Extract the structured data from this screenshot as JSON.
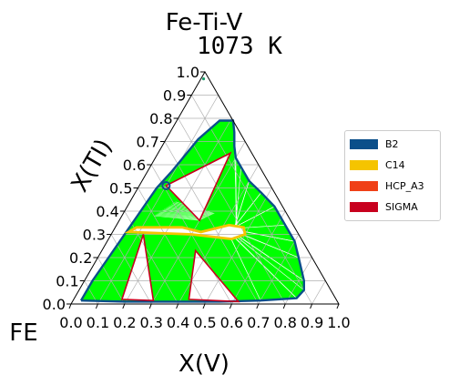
{
  "chart_data": {
    "type": "ternary-phase-diagram",
    "title": "Fe-Ti-V",
    "subtitle": "1073 K",
    "xlabel": "X(V)",
    "ylabel": "X(TI)",
    "corner_label": "FE",
    "x_ticks": [
      "0.0",
      "0.1",
      "0.2",
      "0.3",
      "0.4",
      "0.5",
      "0.6",
      "0.7",
      "0.8",
      "0.9",
      "1.0"
    ],
    "y_ticks": [
      "0.0",
      "0.1",
      "0.2",
      "0.3",
      "0.4",
      "0.5",
      "0.6",
      "0.7",
      "0.8",
      "0.9",
      "1.0"
    ],
    "axis_range": [
      0,
      1
    ],
    "grid": true,
    "legend_position": "right",
    "legend": [
      {
        "name": "B2",
        "color": "#0b4f8a"
      },
      {
        "name": "C14",
        "color": "#f5c400"
      },
      {
        "name": "HCP_A3",
        "color": "#f04017"
      },
      {
        "name": "SIGMA",
        "color": "#c8001e"
      }
    ],
    "tie_line_color": "#00ff00",
    "regions": {
      "b2_boundary": [
        [
          0.03,
          0.015
        ],
        [
          0.2,
          0.01
        ],
        [
          0.4,
          0.01
        ],
        [
          0.55,
          0.01
        ],
        [
          0.7,
          0.015
        ],
        [
          0.83,
          0.025
        ],
        [
          0.84,
          0.06
        ],
        [
          0.82,
          0.1
        ],
        [
          0.75,
          0.2
        ],
        [
          0.7,
          0.27
        ],
        [
          0.63,
          0.34
        ],
        [
          0.55,
          0.42
        ],
        [
          0.47,
          0.48
        ],
        [
          0.4,
          0.53
        ],
        [
          0.34,
          0.59
        ],
        [
          0.3,
          0.63
        ],
        [
          0.27,
          0.68
        ],
        [
          0.24,
          0.74
        ],
        [
          0.21,
          0.79
        ],
        [
          0.16,
          0.79
        ],
        [
          0.12,
          0.71
        ],
        [
          0.09,
          0.57
        ],
        [
          0.07,
          0.5
        ],
        [
          0.06,
          0.4
        ],
        [
          0.05,
          0.3
        ],
        [
          0.04,
          0.2
        ],
        [
          0.03,
          0.1
        ],
        [
          0.03,
          0.015
        ]
      ],
      "c14_band": [
        [
          0.06,
          0.31
        ],
        [
          0.3,
          0.3
        ],
        [
          0.46,
          0.28
        ],
        [
          0.5,
          0.3
        ],
        [
          0.48,
          0.33
        ],
        [
          0.42,
          0.34
        ],
        [
          0.33,
          0.31
        ],
        [
          0.25,
          0.33
        ],
        [
          0.08,
          0.33
        ]
      ],
      "triangle_top": [
        [
          0.1,
          0.51
        ],
        [
          0.27,
          0.65
        ],
        [
          0.3,
          0.36
        ]
      ],
      "triangle_left": [
        [
          0.12,
          0.3
        ],
        [
          0.18,
          0.02
        ],
        [
          0.3,
          0.015
        ]
      ],
      "triangle_right": [
        [
          0.35,
          0.23
        ],
        [
          0.43,
          0.02
        ],
        [
          0.62,
          0.01
        ]
      ]
    }
  }
}
